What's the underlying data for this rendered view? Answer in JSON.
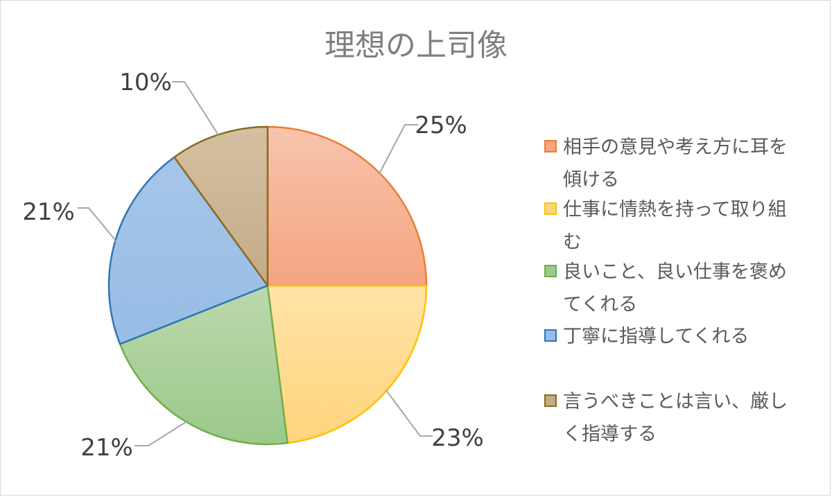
{
  "chart_data": {
    "type": "pie",
    "title": "理想の上司像",
    "categories": [
      "相手の意見や考え方に耳を傾ける",
      "仕事に情熱を持って取り組む",
      "良いこと、良い仕事を褒めてくれる",
      "丁寧に指導してくれる",
      "言うべきことは言い、厳しく指導する"
    ],
    "values": [
      25,
      23,
      21,
      21,
      10
    ],
    "data_labels": [
      "25%",
      "23%",
      "21%",
      "21%",
      "10%"
    ],
    "legend_lines": [
      [
        "相手の意見や考え方に耳を",
        "傾ける"
      ],
      [
        "仕事に情熱を持って取り組",
        "む"
      ],
      [
        "良いこと、良い仕事を褒め",
        "てくれる"
      ],
      [
        "丁寧に指導してくれる"
      ],
      [
        "言うべきことは言い、厳し",
        "く指導する"
      ]
    ],
    "colors": {
      "fill_light": [
        "#f8c4ae",
        "#ffe3a6",
        "#bcd8ad",
        "#a6c5e8",
        "#d4c0a2"
      ],
      "fill_dark": [
        "#f4a47f",
        "#ffd57c",
        "#9cc98a",
        "#97bde6",
        "#c4ab86"
      ],
      "stroke": [
        "#ed7d31",
        "#ffc000",
        "#70ad47",
        "#2e75b6",
        "#8a6a1c"
      ]
    },
    "legend_position": "right"
  }
}
